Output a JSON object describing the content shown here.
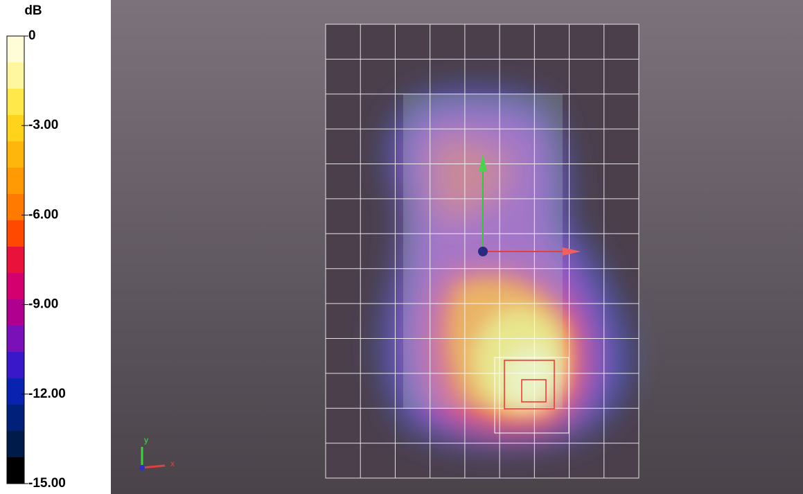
{
  "colorbar": {
    "title": "dB",
    "ticks": [
      {
        "value": 0,
        "label": "0"
      },
      {
        "value": -3,
        "label": "-3.00"
      },
      {
        "value": -6,
        "label": "-6.00"
      },
      {
        "value": -9,
        "label": "-9.00"
      },
      {
        "value": -12,
        "label": "-12.00"
      },
      {
        "value": -15,
        "label": "-15.00"
      }
    ],
    "range": [
      0,
      -15
    ],
    "colors": [
      "#fffcd8",
      "#fff6a0",
      "#ffe84a",
      "#ffd21c",
      "#ffb60c",
      "#ff9a04",
      "#ff7a00",
      "#ff4800",
      "#e8123a",
      "#d40070",
      "#b00090",
      "#7a10b8",
      "#3818c8",
      "#0a22b0",
      "#00207a",
      "#001a4a",
      "#000000"
    ]
  },
  "axes_triad": {
    "y": "y",
    "x": "x"
  }
}
